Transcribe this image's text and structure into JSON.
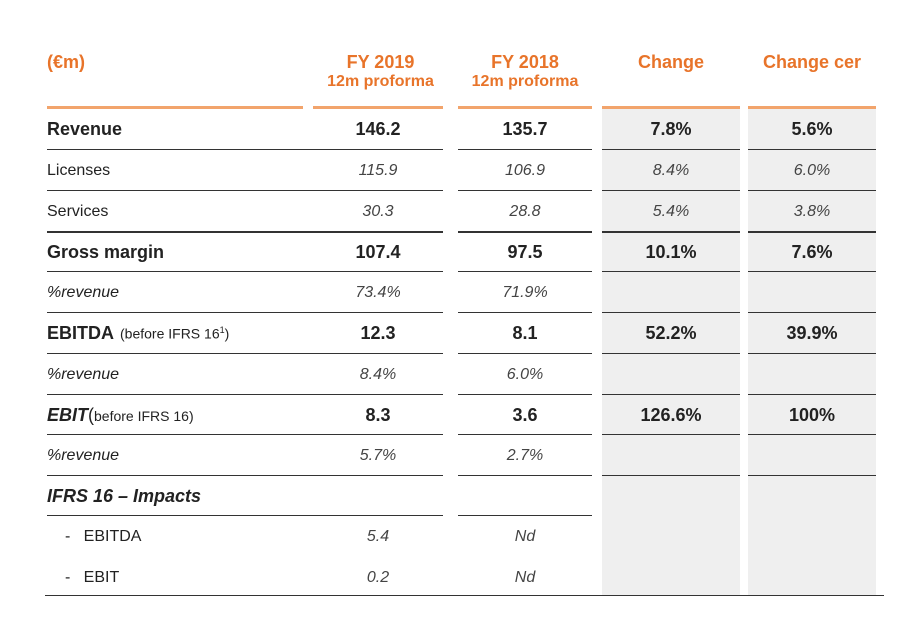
{
  "header": {
    "unit": "(€m)",
    "col1": {
      "line1": "FY 2019",
      "line2": "12m proforma"
    },
    "col2": {
      "line1": "FY 2018",
      "line2": "12m proforma"
    },
    "col3": "Change",
    "col4": "Change cer"
  },
  "rows": [
    {
      "label": "Revenue",
      "fy2019": "146.2",
      "fy2018": "135.7",
      "change": "7.8%",
      "change_cer": "5.6%"
    },
    {
      "label": "Licenses",
      "fy2019": "115.9",
      "fy2018": "106.9",
      "change": "8.4%",
      "change_cer": "6.0%"
    },
    {
      "label": "Services",
      "fy2019": "30.3",
      "fy2018": "28.8",
      "change": "5.4%",
      "change_cer": "3.8%"
    },
    {
      "label": "Gross margin",
      "fy2019": "107.4",
      "fy2018": "97.5",
      "change": "10.1%",
      "change_cer": "7.6%"
    },
    {
      "label": "%revenue",
      "fy2019": "73.4%",
      "fy2018": "71.9%",
      "change": "",
      "change_cer": ""
    },
    {
      "label": "EBITDA",
      "note": "(before IFRS 16",
      "note_sup": "1",
      "note_end": ")",
      "fy2019": "12.3",
      "fy2018": "8.1",
      "change": "52.2%",
      "change_cer": "39.9%"
    },
    {
      "label": "%revenue",
      "fy2019": "8.4%",
      "fy2018": "6.0%",
      "change": "",
      "change_cer": ""
    },
    {
      "label": "EBIT",
      "label_paren": " (",
      "note": "before IFRS 16)",
      "fy2019": "8.3",
      "fy2018": "3.6",
      "change": "126.6%",
      "change_cer": "100%"
    },
    {
      "label": "%revenue",
      "fy2019": "5.7%",
      "fy2018": "2.7%",
      "change": "",
      "change_cer": ""
    },
    {
      "label": "IFRS 16 – Impacts",
      "fy2019": "",
      "fy2018": "",
      "change": "",
      "change_cer": ""
    },
    {
      "label": "-   EBITDA",
      "fy2019": "5.4",
      "fy2018": "Nd",
      "change": "",
      "change_cer": ""
    },
    {
      "label": "-   EBIT",
      "fy2019": "0.2",
      "fy2018": "Nd",
      "change": "",
      "change_cer": ""
    }
  ]
}
